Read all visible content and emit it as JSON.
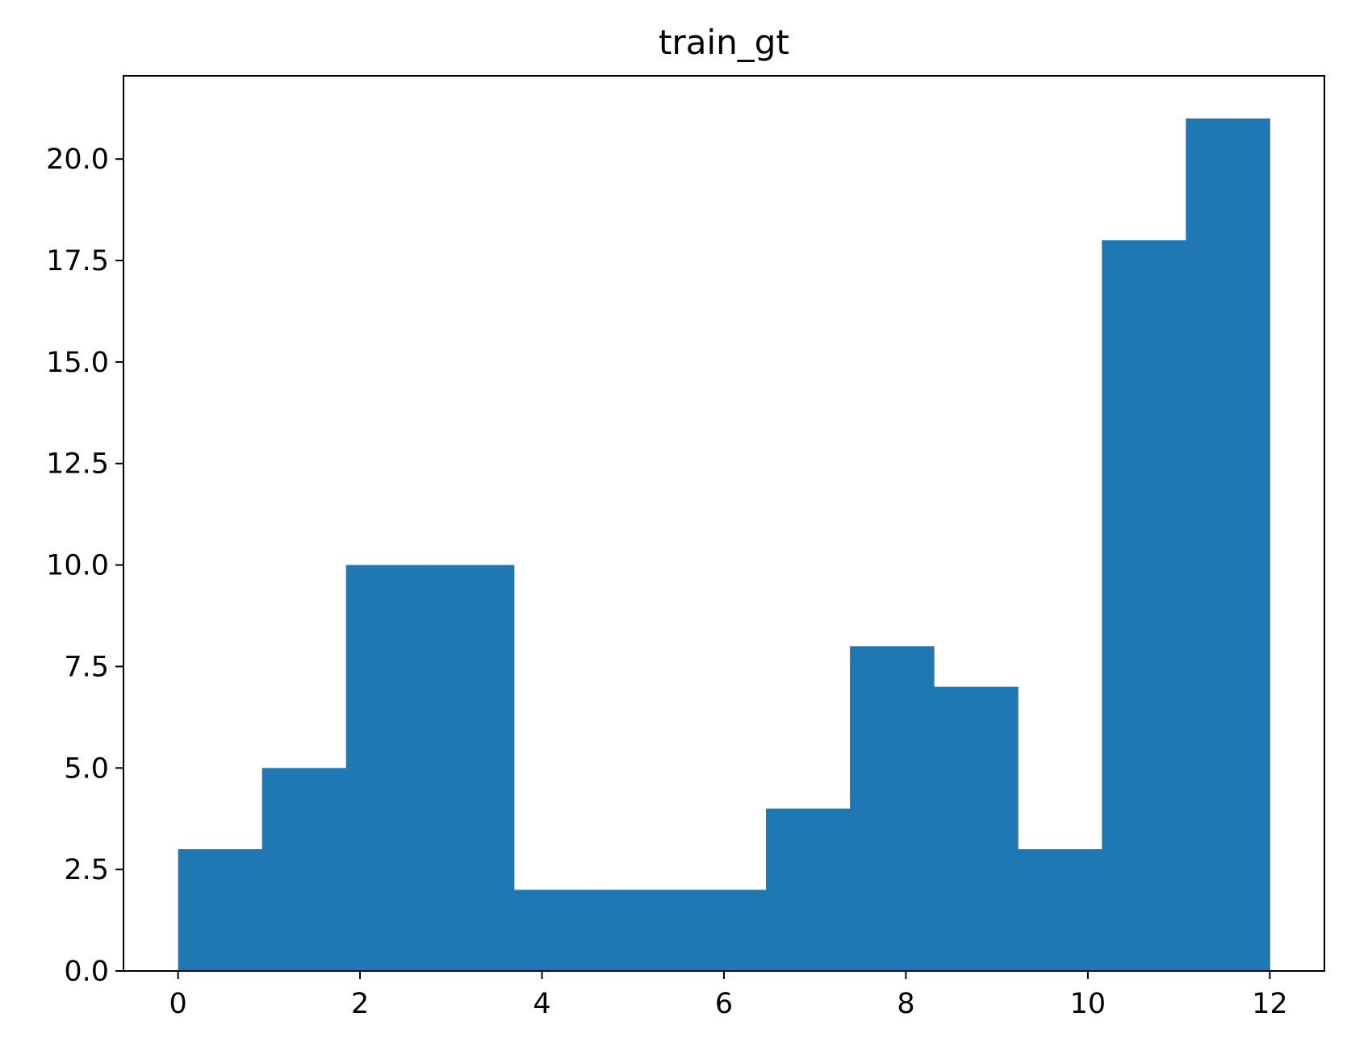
{
  "chart_data": {
    "type": "bar",
    "title": "train_gt",
    "xlabel": "",
    "ylabel": "",
    "bin_edges": [
      0,
      0.923,
      1.846,
      2.769,
      3.692,
      4.615,
      5.538,
      6.462,
      7.385,
      8.308,
      9.231,
      10.154,
      11.077,
      12
    ],
    "values": [
      3,
      5,
      10,
      10,
      2,
      2,
      2,
      4,
      8,
      7,
      3,
      18,
      21
    ],
    "xlim": [
      -0.6,
      12.6
    ],
    "ylim": [
      0,
      22.05
    ],
    "xticks": [
      0,
      2,
      4,
      6,
      8,
      10,
      12
    ],
    "xtick_labels": [
      "0",
      "2",
      "4",
      "6",
      "8",
      "10",
      "12"
    ],
    "yticks": [
      0,
      2.5,
      5,
      7.5,
      10,
      12.5,
      15,
      17.5,
      20
    ],
    "ytick_labels": [
      "0.0",
      "2.5",
      "5.0",
      "7.5",
      "10.0",
      "12.5",
      "15.0",
      "17.5",
      "20.0"
    ],
    "bar_color": "#1f77b4",
    "grid": false,
    "legend": "none"
  }
}
